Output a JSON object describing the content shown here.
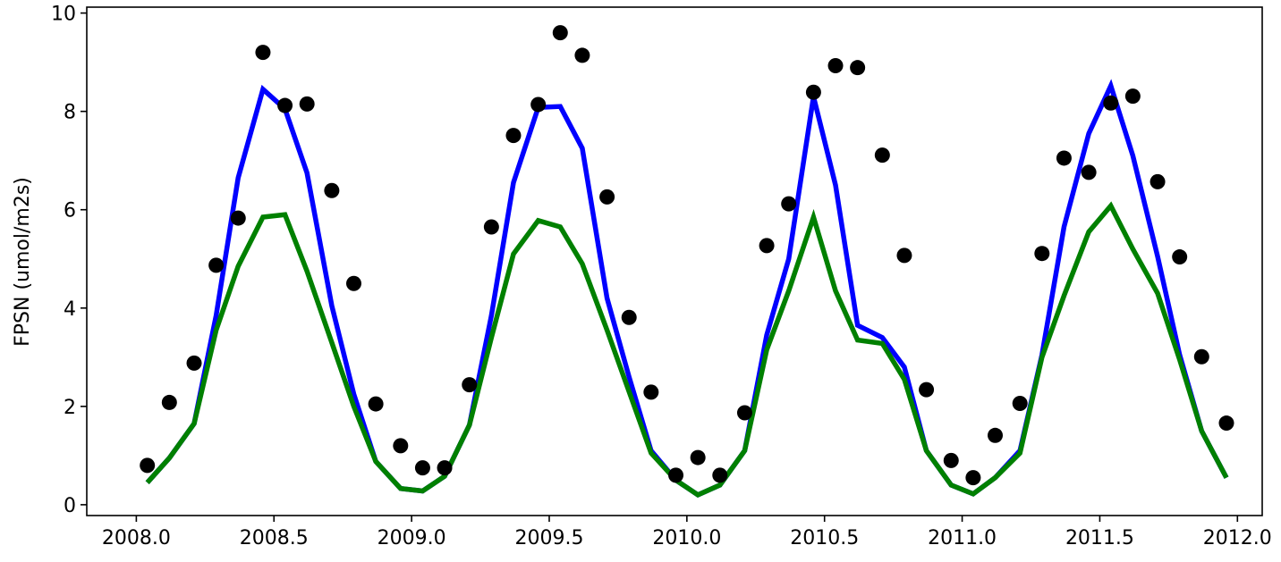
{
  "chart_data": {
    "type": "line",
    "title": "",
    "xlabel": "",
    "ylabel": "FPSN (umol/m2s)",
    "xlim": [
      2007.82,
      2012.09
    ],
    "ylim": [
      -0.22,
      10.12
    ],
    "x_ticks": [
      2008.0,
      2008.5,
      2009.0,
      2009.5,
      2010.0,
      2010.5,
      2011.0,
      2011.5,
      2012.0
    ],
    "x_tick_labels": [
      "2008.0",
      "2008.5",
      "2009.0",
      "2009.5",
      "2010.0",
      "2010.5",
      "2011.0",
      "2011.5",
      "2012.0"
    ],
    "y_ticks": [
      0,
      2,
      4,
      6,
      8,
      10
    ],
    "y_tick_labels": [
      "0",
      "2",
      "4",
      "6",
      "8",
      "10"
    ],
    "grid": false,
    "legend": "none",
    "series": [
      {
        "type": "line",
        "color": "#0000ff",
        "x": [
          2008.04,
          2008.12,
          2008.21,
          2008.29,
          2008.37,
          2008.46,
          2008.54,
          2008.62,
          2008.71,
          2008.79,
          2008.87,
          2008.96,
          2009.04,
          2009.12,
          2009.21,
          2009.29,
          2009.37,
          2009.46,
          2009.54,
          2009.62,
          2009.71,
          2009.79,
          2009.87,
          2009.96,
          2010.04,
          2010.12,
          2010.21,
          2010.29,
          2010.37,
          2010.46,
          2010.54,
          2010.62,
          2010.71,
          2010.79,
          2010.87,
          2010.96,
          2011.04,
          2011.12,
          2011.21,
          2011.29,
          2011.37,
          2011.46,
          2011.54,
          2011.62,
          2011.71,
          2011.79,
          2011.87,
          2011.96
        ],
        "y": [
          0.45,
          0.95,
          1.65,
          3.85,
          6.65,
          8.45,
          8.05,
          6.75,
          4.05,
          2.25,
          0.88,
          0.33,
          0.28,
          0.58,
          1.62,
          3.85,
          6.55,
          8.08,
          8.1,
          7.25,
          4.2,
          2.6,
          1.1,
          0.5,
          0.2,
          0.4,
          1.1,
          3.45,
          5.0,
          8.3,
          6.5,
          3.65,
          3.4,
          2.8,
          1.1,
          0.4,
          0.22,
          0.55,
          1.1,
          3.05,
          5.65,
          7.55,
          8.52,
          7.1,
          5.05,
          3.05,
          1.5,
          0.55
        ]
      },
      {
        "type": "line",
        "color": "#008000",
        "x": [
          2008.04,
          2008.12,
          2008.21,
          2008.29,
          2008.37,
          2008.46,
          2008.54,
          2008.62,
          2008.71,
          2008.79,
          2008.87,
          2008.96,
          2009.04,
          2009.12,
          2009.21,
          2009.29,
          2009.37,
          2009.46,
          2009.54,
          2009.62,
          2009.71,
          2009.79,
          2009.87,
          2009.96,
          2010.04,
          2010.12,
          2010.21,
          2010.29,
          2010.37,
          2010.46,
          2010.54,
          2010.62,
          2010.71,
          2010.79,
          2010.87,
          2010.96,
          2011.04,
          2011.12,
          2011.21,
          2011.29,
          2011.37,
          2011.46,
          2011.54,
          2011.62,
          2011.71,
          2011.79,
          2011.87,
          2011.96
        ],
        "y": [
          0.45,
          0.95,
          1.65,
          3.55,
          4.85,
          5.85,
          5.9,
          4.75,
          3.3,
          2.0,
          0.88,
          0.33,
          0.28,
          0.58,
          1.62,
          3.4,
          5.1,
          5.78,
          5.65,
          4.9,
          3.55,
          2.3,
          1.05,
          0.5,
          0.2,
          0.4,
          1.1,
          3.15,
          4.35,
          5.85,
          4.35,
          3.35,
          3.28,
          2.55,
          1.1,
          0.4,
          0.22,
          0.55,
          1.05,
          3.0,
          4.25,
          5.55,
          6.08,
          5.2,
          4.3,
          2.95,
          1.5,
          0.55
        ]
      },
      {
        "type": "scatter",
        "color": "#000000",
        "x": [
          2008.04,
          2008.12,
          2008.21,
          2008.29,
          2008.37,
          2008.46,
          2008.54,
          2008.62,
          2008.71,
          2008.79,
          2008.87,
          2008.96,
          2009.04,
          2009.12,
          2009.21,
          2009.29,
          2009.37,
          2009.46,
          2009.54,
          2009.62,
          2009.71,
          2009.79,
          2009.87,
          2009.96,
          2010.04,
          2010.12,
          2010.21,
          2010.29,
          2010.37,
          2010.46,
          2010.54,
          2010.62,
          2010.71,
          2010.79,
          2010.87,
          2010.96,
          2011.04,
          2011.12,
          2011.21,
          2011.29,
          2011.37,
          2011.46,
          2011.54,
          2011.62,
          2011.71,
          2011.79,
          2011.87,
          2011.96
        ],
        "y": [
          0.8,
          2.08,
          2.88,
          4.87,
          5.83,
          9.2,
          8.12,
          8.15,
          6.39,
          4.5,
          2.05,
          1.2,
          0.75,
          0.75,
          2.44,
          5.65,
          7.51,
          8.14,
          9.6,
          9.14,
          6.26,
          3.81,
          2.29,
          0.6,
          0.96,
          0.6,
          1.87,
          5.27,
          6.12,
          8.39,
          8.93,
          8.89,
          7.11,
          5.07,
          2.34,
          0.9,
          0.55,
          1.41,
          2.06,
          5.11,
          7.05,
          6.76,
          8.17,
          8.31,
          6.57,
          5.04,
          3.01,
          1.66
        ]
      }
    ]
  }
}
